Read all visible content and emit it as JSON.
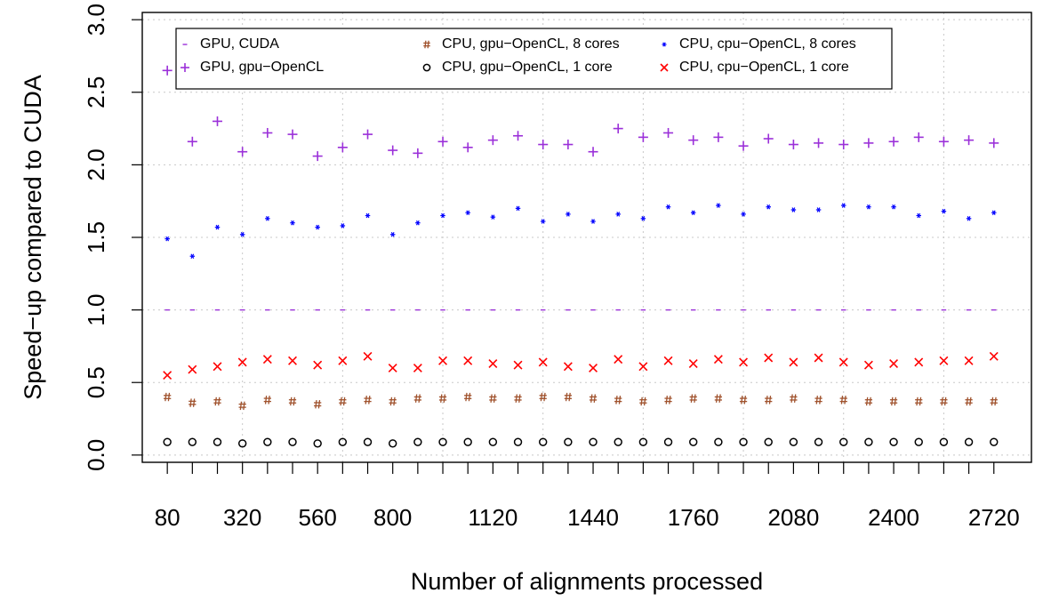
{
  "chart_data": {
    "type": "scatter",
    "title": "",
    "xlabel": "Number of alignments processed",
    "ylabel": "Speed−up compared to CUDA",
    "xlim": [
      0,
      2840
    ],
    "ylim": [
      -0.05,
      3.05
    ],
    "x": [
      80,
      160,
      240,
      320,
      400,
      480,
      560,
      640,
      720,
      800,
      880,
      960,
      1040,
      1120,
      1200,
      1280,
      1360,
      1440,
      1520,
      1600,
      1680,
      1760,
      1840,
      1920,
      2000,
      2080,
      2160,
      2240,
      2320,
      2400,
      2480,
      2560,
      2640,
      2720
    ],
    "x_tick_labels": [
      "80",
      "320",
      "560",
      "800",
      "1120",
      "1440",
      "1760",
      "2080",
      "2400",
      "2720"
    ],
    "y_ticks": [
      0.0,
      0.5,
      1.0,
      1.5,
      2.0,
      2.5,
      3.0
    ],
    "y_tick_labels": [
      "0.0",
      "0.5",
      "1.0",
      "1.5",
      "2.0",
      "2.5",
      "3.0"
    ],
    "grid": true,
    "legend_position": "top",
    "series": [
      {
        "name": "GPU, CUDA",
        "symbol": "−",
        "color": "#9b30d9",
        "values": [
          1.0,
          1.0,
          1.0,
          1.0,
          1.0,
          1.0,
          1.0,
          1.0,
          1.0,
          1.0,
          1.0,
          1.0,
          1.0,
          1.0,
          1.0,
          1.0,
          1.0,
          1.0,
          1.0,
          1.0,
          1.0,
          1.0,
          1.0,
          1.0,
          1.0,
          1.0,
          1.0,
          1.0,
          1.0,
          1.0,
          1.0,
          1.0,
          1.0,
          1.0
        ]
      },
      {
        "name": "GPU, gpu−OpenCL",
        "symbol": "+",
        "color": "#9b30d9",
        "values": [
          2.65,
          2.16,
          2.3,
          2.09,
          2.22,
          2.21,
          2.06,
          2.12,
          2.21,
          2.1,
          2.08,
          2.16,
          2.12,
          2.17,
          2.2,
          2.14,
          2.14,
          2.09,
          2.25,
          2.19,
          2.22,
          2.17,
          2.19,
          2.13,
          2.18,
          2.14,
          2.15,
          2.14,
          2.15,
          2.16,
          2.19,
          2.16,
          2.17,
          2.15
        ]
      },
      {
        "name": "CPU, gpu−OpenCL, 8 cores",
        "symbol": "#",
        "color": "#a0522d",
        "values": [
          0.4,
          0.36,
          0.37,
          0.34,
          0.38,
          0.37,
          0.35,
          0.37,
          0.38,
          0.37,
          0.39,
          0.39,
          0.4,
          0.39,
          0.39,
          0.4,
          0.4,
          0.39,
          0.38,
          0.37,
          0.38,
          0.39,
          0.39,
          0.38,
          0.38,
          0.39,
          0.38,
          0.38,
          0.37,
          0.37,
          0.37,
          0.37,
          0.37,
          0.37
        ]
      },
      {
        "name": "CPU, gpu−OpenCL, 1 core",
        "symbol": "o",
        "color": "#000000",
        "values": [
          0.09,
          0.09,
          0.09,
          0.08,
          0.09,
          0.09,
          0.08,
          0.09,
          0.09,
          0.08,
          0.09,
          0.09,
          0.09,
          0.09,
          0.09,
          0.09,
          0.09,
          0.09,
          0.09,
          0.09,
          0.09,
          0.09,
          0.09,
          0.09,
          0.09,
          0.09,
          0.09,
          0.09,
          0.09,
          0.09,
          0.09,
          0.09,
          0.09,
          0.09
        ]
      },
      {
        "name": "CPU, cpu−OpenCL, 8 cores",
        "symbol": "*",
        "color": "#0000ff",
        "values": [
          1.49,
          1.37,
          1.57,
          1.52,
          1.63,
          1.6,
          1.57,
          1.58,
          1.65,
          1.52,
          1.6,
          1.65,
          1.67,
          1.64,
          1.7,
          1.61,
          1.66,
          1.61,
          1.66,
          1.63,
          1.71,
          1.67,
          1.72,
          1.66,
          1.71,
          1.69,
          1.69,
          1.72,
          1.71,
          1.71,
          1.65,
          1.68,
          1.63,
          1.67
        ]
      },
      {
        "name": "CPU, cpu−OpenCL, 1 core",
        "symbol": "x",
        "color": "#ff0000",
        "values": [
          0.55,
          0.59,
          0.61,
          0.64,
          0.66,
          0.65,
          0.62,
          0.65,
          0.68,
          0.6,
          0.6,
          0.65,
          0.65,
          0.63,
          0.62,
          0.64,
          0.61,
          0.6,
          0.66,
          0.61,
          0.65,
          0.63,
          0.66,
          0.64,
          0.67,
          0.64,
          0.67,
          0.64,
          0.62,
          0.63,
          0.64,
          0.65,
          0.65,
          0.68
        ]
      }
    ]
  }
}
